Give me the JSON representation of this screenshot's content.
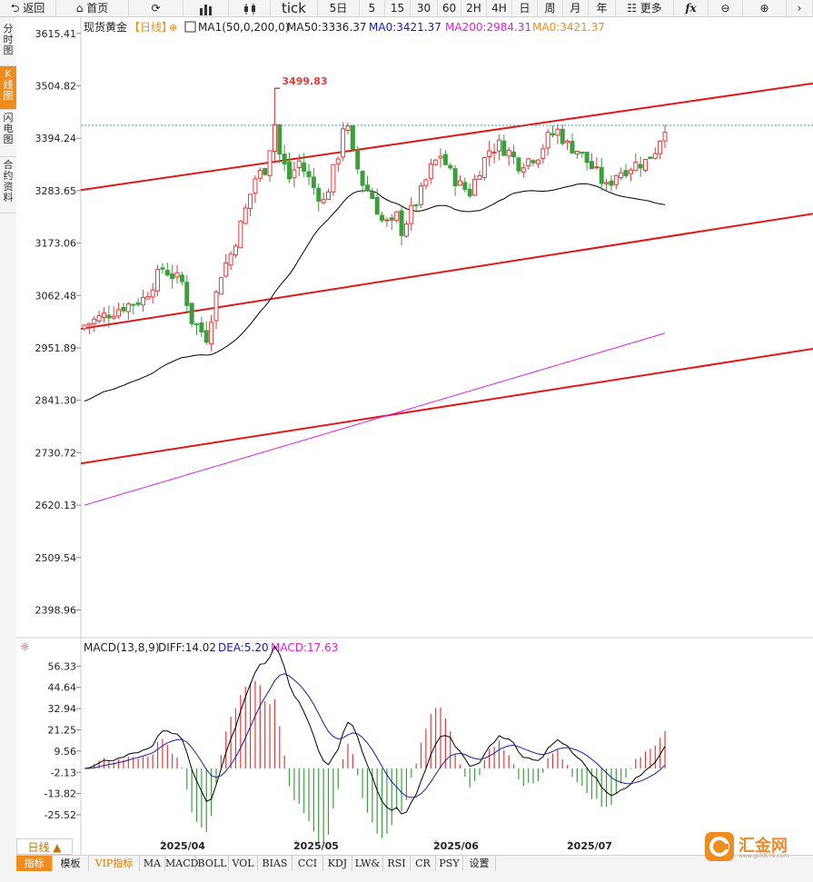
{
  "toolbar": {
    "back": "返回",
    "home": "首页",
    "tick": "tick",
    "periods": [
      "5日",
      "5",
      "15",
      "30",
      "60",
      "2H",
      "4H",
      "日",
      "周",
      "月",
      "年"
    ],
    "more": "更多",
    "fx": "fx"
  },
  "sidebar": {
    "tabs": [
      "分时图",
      "K线图",
      "闪电图",
      "合约资料"
    ]
  },
  "legend": {
    "name": "现货黄金",
    "period": "【日线】",
    "ma1": "MA1(50,0,200,0)",
    "ma50": "MA50:3336.37",
    "ma0_a": "MA0:3421.37",
    "ma200": "MA200:2984.31",
    "ma0_b": "MA0:3421.37"
  },
  "macd_legend": {
    "name": "MACD(13,8,9)",
    "diff": "DIFF:14.02",
    "dea": "DEA:5.20",
    "macd": "MACD:17.63"
  },
  "period_tab": "日线 ▲",
  "bottom_tabs": [
    "指标",
    "模板",
    "VIP指标",
    "MA",
    "MACD",
    "BOLL",
    "VOL",
    "BIAS",
    "CCI",
    "KDJ",
    "LW&",
    "RSI",
    "CR",
    "PSY",
    "设置"
  ],
  "watermark": {
    "text": "汇金网",
    "sub": "www.gold678.com"
  },
  "colors": {
    "up": "#e23c3c",
    "down": "#3aa13a",
    "ma50": "#000000",
    "ma200": "#e020e0",
    "channel": "#e01818",
    "diff": "#000000",
    "dea": "#1a1ab0",
    "accent": "#f08c1e"
  },
  "chart_data": {
    "type": "candlestick",
    "y_ticks": [
      "3615.41",
      "3504.82",
      "3394.24",
      "3283.65",
      "3173.06",
      "3062.48",
      "2951.89",
      "2841.30",
      "2730.72",
      "2620.13",
      "2509.54",
      "2398.96"
    ],
    "ylim": [
      2350,
      3640
    ],
    "x_ticks": [
      "2025/04",
      "2025/05",
      "2025/06",
      "2025/07"
    ],
    "high_label": "3499.83",
    "last_close": 3421.37,
    "macd_y_ticks": [
      "56.33",
      "44.64",
      "32.94",
      "21.25",
      "9.56",
      "-2.13",
      "-13.82",
      "-25.52"
    ],
    "macd_ylim": [
      -40,
      62
    ]
  }
}
